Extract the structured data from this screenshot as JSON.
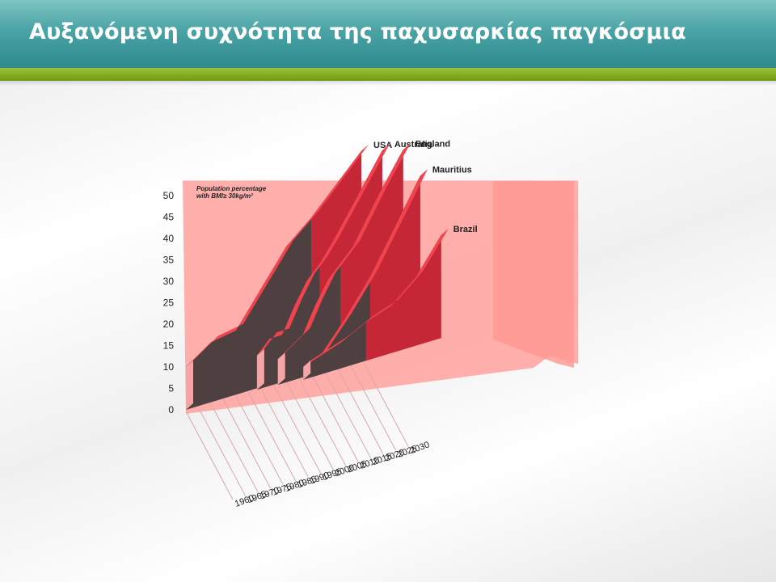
{
  "slide": {
    "title": "Αυξανόμενη συχνότητα της παχυσαρκίας παγκόσμια"
  },
  "colors": {
    "header_teal": "#3a9597",
    "accent_green": "#7ba81e",
    "backplane": "#ffa8a4",
    "ribbon_top": "#f0434d",
    "ribbon_face": "#dc2336",
    "ribbon_dark": "#4e3f40"
  },
  "chart_data": {
    "type": "area",
    "subtype": "3d-ribbon",
    "title": "",
    "ylabel_lines": [
      "Population percentage",
      "with BMI≥ 30kg/m²"
    ],
    "xlabel": "",
    "ylim": [
      0,
      50
    ],
    "y_ticks": [
      "0",
      "5",
      "10",
      "15",
      "20",
      "25",
      "30",
      "35",
      "40",
      "45",
      "50"
    ],
    "x_ticks": [
      "1960",
      "1965",
      "1970",
      "1975",
      "1980",
      "1985",
      "1990",
      "1995",
      "2000",
      "2005",
      "2010",
      "2015",
      "2020",
      "2025",
      "2030"
    ],
    "series": [
      {
        "name": "USA",
        "x": [
          1960,
          1970,
          1980,
          1990,
          2000,
          2010,
          2020,
          2030
        ],
        "actual": [
          10,
          14,
          15,
          23,
          31,
          36,
          42,
          48
        ],
        "projected_from": 2010
      },
      {
        "name": "Australia",
        "x": [
          1980,
          1985,
          1990,
          1995,
          2000,
          2005,
          2010,
          2020,
          2030
        ],
        "actual": [
          8,
          11,
          11,
          17,
          22,
          25,
          29,
          38,
          47
        ],
        "projected_from": 2005
      },
      {
        "name": "England",
        "x": [
          1980,
          1990,
          1995,
          2000,
          2005,
          2010,
          2020,
          2030
        ],
        "actual": [
          6,
          10,
          16,
          21,
          24,
          27,
          37,
          46
        ],
        "projected_from": 2005
      },
      {
        "name": "Mauritius",
        "x": [
          1985,
          1990,
          2000,
          2010,
          2020,
          2030
        ],
        "actual": [
          2,
          4,
          11,
          19,
          29,
          39
        ],
        "projected_from": 2005
      },
      {
        "name": "Brazil",
        "x": [
          1975,
          1980,
          1990,
          2000,
          2010,
          2020,
          2030
        ],
        "actual": [
          3,
          4,
          6,
          9,
          11,
          16,
          24
        ],
        "projected_from": 2000
      }
    ]
  }
}
